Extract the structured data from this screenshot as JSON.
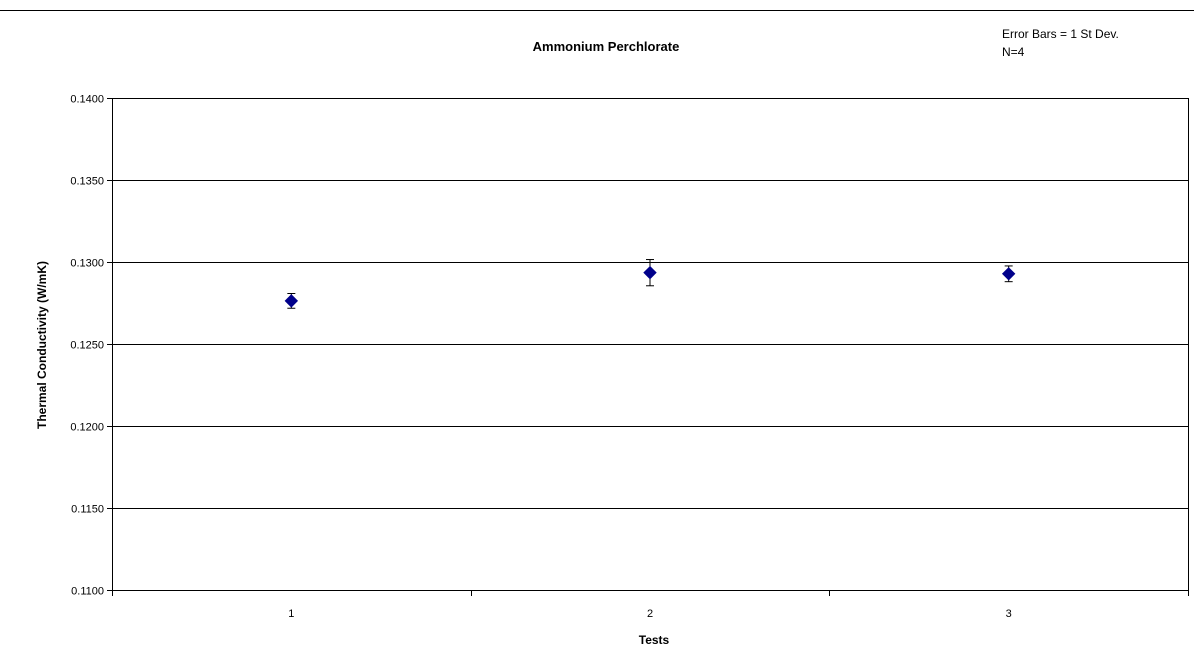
{
  "chart_data": {
    "type": "scatter",
    "title": "Ammonium Perchlorate",
    "xlabel": "Tests",
    "ylabel": "Thermal Conductivity (W/mK)",
    "annotations": [
      "Error Bars = 1 St Dev.",
      "N=4"
    ],
    "categories": [
      "1",
      "2",
      "3"
    ],
    "y_tick_labels": [
      "0.1100",
      "0.1150",
      "0.1200",
      "0.1250",
      "0.1300",
      "0.1350",
      "0.1400"
    ],
    "ylim": [
      0.11,
      0.14
    ],
    "y_major_unit": 0.005,
    "grid": true,
    "legend": "none",
    "series": [
      {
        "values": [
          0.12763,
          0.12935,
          0.12928
        ],
        "error": [
          0.00045,
          0.0008,
          0.00048
        ],
        "marker": "diamond",
        "color": "#00008B"
      }
    ]
  },
  "colors": {
    "marker": "#00008B",
    "gridline": "#000000",
    "axis": "#000000",
    "top_rule": "#000000"
  }
}
